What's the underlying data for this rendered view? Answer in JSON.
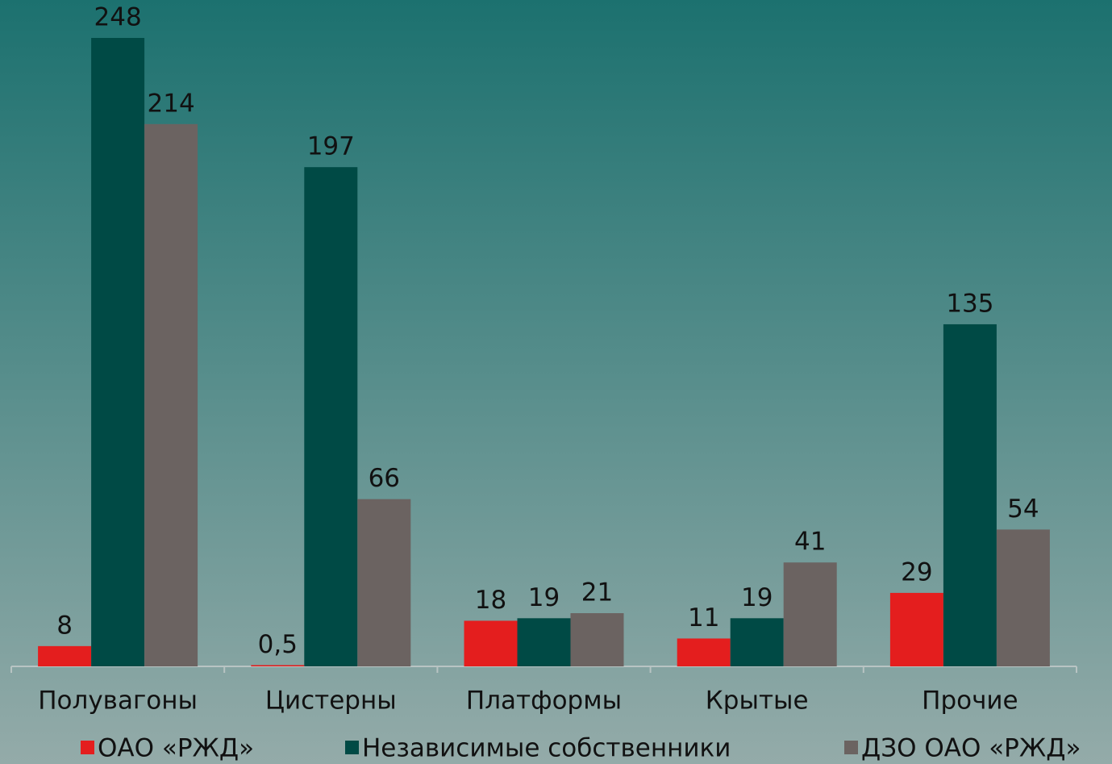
{
  "chart_data": {
    "type": "bar",
    "categories": [
      "Полувагоны",
      "Цистерны",
      "Платформы",
      "Крытые",
      "Прочие"
    ],
    "series": [
      {
        "name": "ОАО «РЖД»",
        "color": "#e41e1e",
        "values": [
          8,
          0.5,
          18,
          11,
          29
        ],
        "value_labels": [
          "8",
          "0,5",
          "18",
          "11",
          "29"
        ]
      },
      {
        "name": "Независимые собственники",
        "color": "#004a45",
        "values": [
          248,
          197,
          19,
          19,
          135
        ]
      },
      {
        "name": "ДЗО ОАО «РЖД»",
        "color": "#6b6361",
        "values": [
          214,
          66,
          21,
          41,
          54
        ]
      }
    ],
    "legend": "bottom"
  }
}
